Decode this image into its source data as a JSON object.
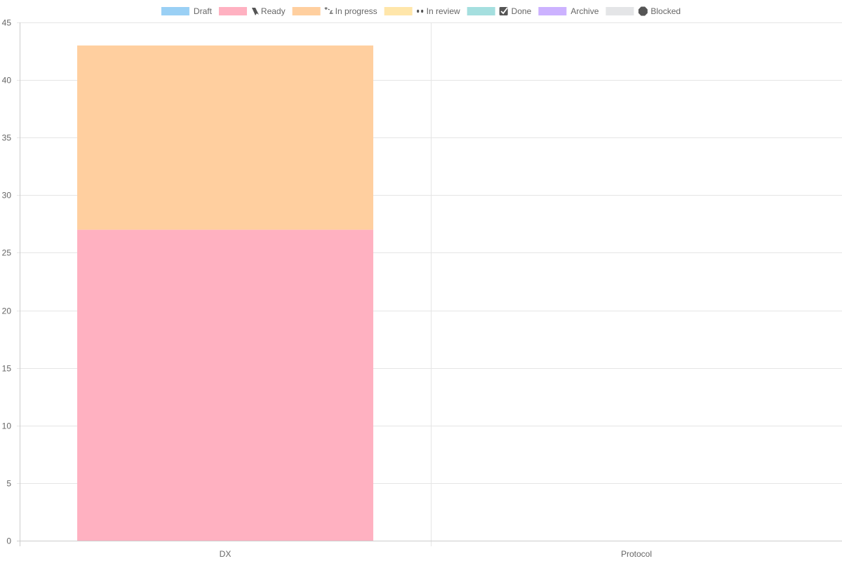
{
  "chart_data": {
    "type": "bar",
    "stacked": true,
    "categories": [
      "DX",
      "Protocol"
    ],
    "series": [
      {
        "name": "Draft",
        "icon": "",
        "color": "#9ad0f5",
        "values": [
          0,
          0
        ]
      },
      {
        "name": "Ready",
        "icon": "bookmark-icon",
        "color": "#ffb1c1",
        "values": [
          27,
          0
        ]
      },
      {
        "name": "In progress",
        "icon": "construction-icon",
        "color": "#ffcf9f",
        "values": [
          16,
          0
        ]
      },
      {
        "name": "In review",
        "icon": "eyes-icon",
        "color": "#ffe6aa",
        "values": [
          0,
          0
        ]
      },
      {
        "name": "Done",
        "icon": "check-box-icon",
        "color": "#a5dfdf",
        "values": [
          0,
          0
        ]
      },
      {
        "name": "Archive",
        "icon": "",
        "color": "#ccb2ff",
        "values": [
          0,
          0
        ]
      },
      {
        "name": "Blocked",
        "icon": "stop-icon",
        "color": "#e4e5e7",
        "values": [
          0,
          0
        ]
      }
    ],
    "xlabel": "",
    "ylabel": "",
    "ylim": [
      0,
      45
    ],
    "yticks": [
      0,
      5,
      10,
      15,
      20,
      25,
      30,
      35,
      40,
      45
    ],
    "grid": true,
    "legend_position": "top"
  }
}
